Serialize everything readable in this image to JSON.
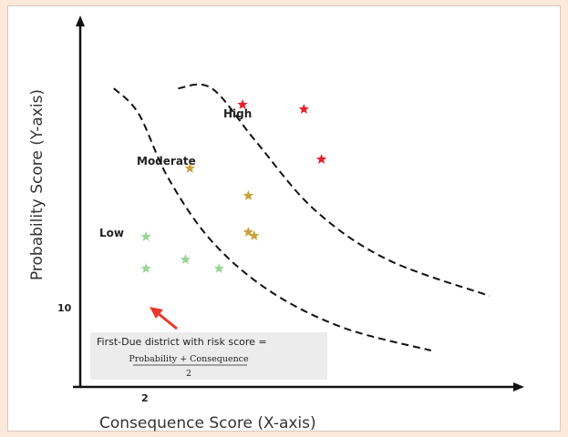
{
  "chart_data": {
    "type": "scatter",
    "title": "",
    "xlabel": "Consequence Score (X-axis)",
    "ylabel": "Probability Score (Y-axis)",
    "xlim": [
      0,
      30
    ],
    "ylim": [
      0,
      40
    ],
    "x_ticks": [
      2
    ],
    "y_ticks": [
      10
    ],
    "grid": false,
    "zones": [
      {
        "name": "Low"
      },
      {
        "name": "Moderate"
      },
      {
        "name": "High"
      }
    ],
    "boundaries": [
      {
        "name": "low-moderate",
        "points": [
          [
            2.3,
            37.5
          ],
          [
            4,
            30
          ],
          [
            6,
            23
          ],
          [
            9,
            16
          ],
          [
            13,
            10.5
          ],
          [
            18,
            6.5
          ],
          [
            24,
            4
          ]
        ]
      },
      {
        "name": "moderate-high",
        "points": [
          [
            6.7,
            45
          ],
          [
            9,
            35
          ],
          [
            12,
            27
          ],
          [
            16,
            19.5
          ],
          [
            21,
            14
          ],
          [
            28,
            10
          ]
        ]
      }
    ],
    "series": [
      {
        "color": "#9bd49b",
        "points": [
          [
            4.5,
            13
          ],
          [
            4.5,
            16.5
          ],
          [
            7.2,
            14
          ],
          [
            9.5,
            13
          ]
        ]
      },
      {
        "color": "#c8a23c",
        "points": [
          [
            7.5,
            24
          ],
          [
            11.5,
            21
          ],
          [
            11.5,
            17
          ],
          [
            11.9,
            16.6
          ]
        ]
      },
      {
        "color": "#e8202a",
        "points": [
          [
            11.1,
            31
          ],
          [
            15.3,
            30.5
          ],
          [
            16.5,
            25
          ]
        ]
      }
    ],
    "annotation": {
      "text": "First-Due district with risk score =",
      "numerator": "Probability + Consequence",
      "denominator": "2"
    }
  },
  "colors": {
    "background": "#fde9d9",
    "arrow": "#e8392c",
    "annotation_box": "#ececec"
  }
}
